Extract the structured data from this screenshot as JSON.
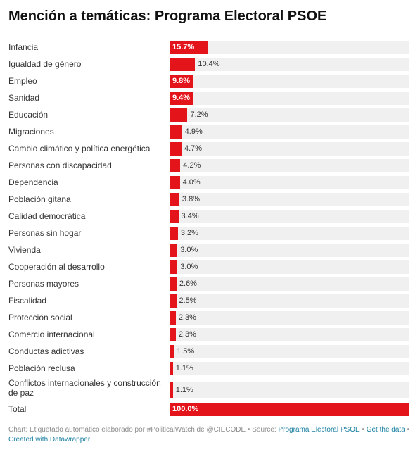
{
  "title": "Mención a temáticas: Programa Electoral PSOE",
  "colors": {
    "bar": "#e4141b",
    "track": "#f0f0f0",
    "link": "#1d81a2",
    "footer": "#8c8c8c"
  },
  "chart_data": {
    "type": "bar",
    "orientation": "horizontal",
    "title": "Mención a temáticas: Programa Electoral PSOE",
    "xlim": [
      0,
      100
    ],
    "grid": false,
    "categories": [
      "Infancia",
      "Igualdad de género",
      "Empleo",
      "Sanidad",
      "Educación",
      "Migraciones",
      "Cambio climático y política energética",
      "Personas con discapacidad",
      "Dependencia",
      "Población gitana",
      "Calidad democrática",
      "Personas sin hogar",
      "Vivienda",
      "Cooperación al desarrollo",
      "Personas mayores",
      "Fiscalidad",
      "Protección social",
      "Comercio internacional",
      "Conductas adictivas",
      "Población reclusa",
      "Conflictos internacionales y construcción de paz",
      "Total"
    ],
    "values": [
      15.7,
      10.4,
      9.8,
      9.4,
      7.2,
      4.9,
      4.7,
      4.2,
      4.0,
      3.8,
      3.4,
      3.2,
      3.0,
      3.0,
      2.6,
      2.5,
      2.3,
      2.3,
      1.5,
      1.1,
      1.1,
      100.0
    ],
    "value_labels": [
      "15.7%",
      "10.4%",
      "9.8%",
      "9.4%",
      "7.2%",
      "4.9%",
      "4.7%",
      "4.2%",
      "4.0%",
      "3.8%",
      "3.4%",
      "3.2%",
      "3.0%",
      "3.0%",
      "2.6%",
      "2.5%",
      "2.3%",
      "2.3%",
      "1.5%",
      "1.1%",
      "1.1%",
      "100.0%"
    ],
    "label_inside": [
      true,
      false,
      true,
      true,
      false,
      false,
      false,
      false,
      false,
      false,
      false,
      false,
      false,
      false,
      false,
      false,
      false,
      false,
      false,
      false,
      false,
      true
    ]
  },
  "footer": {
    "credit": "Chart: Etiquetado automático elaborado por #PoliticalWatch de @CIECODE • Source: ",
    "source_link": "Programa Electoral PSOE",
    "sep1": " • ",
    "get_data": "Get the data",
    "sep2": " • ",
    "created_with": "Created with Datawrapper"
  }
}
